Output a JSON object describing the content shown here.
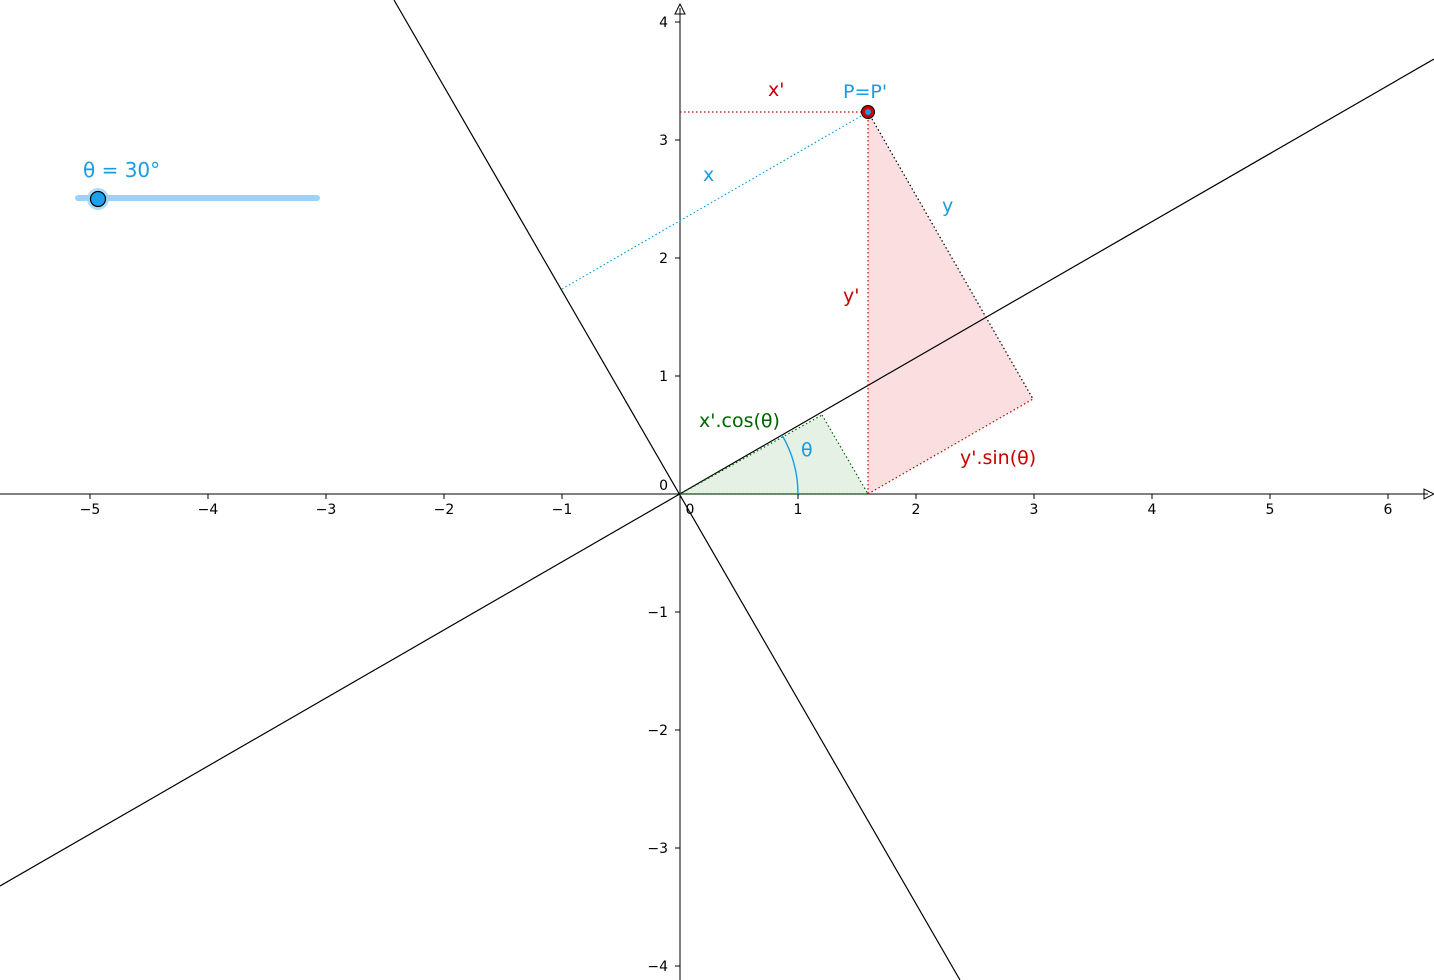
{
  "slider": {
    "label": "θ = 30°",
    "name": "θ",
    "value_deg": 30,
    "track_color": "#99d4f7",
    "knob_color": "#1ea0f0"
  },
  "axes": {
    "x_ticks": [
      "−5",
      "−4",
      "−3",
      "−2",
      "−1",
      "0",
      "1",
      "2",
      "3",
      "4",
      "5",
      "6"
    ],
    "y_ticks": [
      "4",
      "3",
      "2",
      "1",
      "0",
      "−1",
      "−2",
      "−3",
      "−4"
    ]
  },
  "labels": {
    "x_prime": "x'",
    "point": "P=P'",
    "x": "x",
    "y": "y",
    "y_prime": "y'",
    "theta": "θ",
    "x_cos": "x'.cos(θ)",
    "y_sin": "y'.sin(θ)"
  },
  "colors": {
    "red": "#cc0000",
    "blue": "#1a9be0",
    "green": "#006600",
    "pink_fill": "#f9d6da",
    "green_fill": "#dcebdc"
  }
}
